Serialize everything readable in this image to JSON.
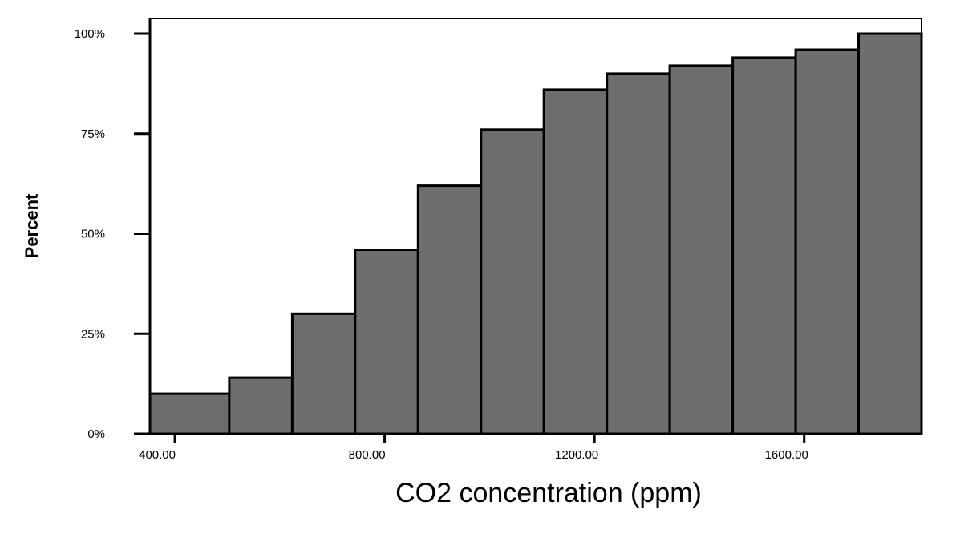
{
  "chart_data": {
    "type": "bar",
    "subtype": "cumulative histogram",
    "title": "",
    "xlabel": "CO2 concentration (ppm)",
    "ylabel": "Percent",
    "bins": [
      {
        "from": 352.5,
        "to": 503.75,
        "percent": 10
      },
      {
        "from": 503.75,
        "to": 623.75,
        "percent": 14
      },
      {
        "from": 623.75,
        "to": 743.75,
        "percent": 30
      },
      {
        "from": 743.75,
        "to": 863.75,
        "percent": 46
      },
      {
        "from": 863.75,
        "to": 983.75,
        "percent": 62
      },
      {
        "from": 983.75,
        "to": 1103.75,
        "percent": 76
      },
      {
        "from": 1103.75,
        "to": 1223.75,
        "percent": 86
      },
      {
        "from": 1223.75,
        "to": 1343.75,
        "percent": 90
      },
      {
        "from": 1343.75,
        "to": 1463.75,
        "percent": 92
      },
      {
        "from": 1463.75,
        "to": 1583.75,
        "percent": 94
      },
      {
        "from": 1583.75,
        "to": 1703.75,
        "percent": 96
      },
      {
        "from": 1703.75,
        "to": 1823.75,
        "percent": 100
      }
    ],
    "xlim": [
      352.5,
      1823.75
    ],
    "ylim": [
      0,
      100
    ],
    "x_ticks": [
      {
        "value": 400,
        "label": "400.00"
      },
      {
        "value": 800,
        "label": "800.00"
      },
      {
        "value": 1200,
        "label": "1200.00"
      },
      {
        "value": 1600,
        "label": "1600.00"
      }
    ],
    "y_ticks": [
      {
        "value": 0,
        "label": "0%"
      },
      {
        "value": 25,
        "label": "25%"
      },
      {
        "value": 50,
        "label": "50%"
      },
      {
        "value": 75,
        "label": "75%"
      },
      {
        "value": 100,
        "label": "100%"
      }
    ],
    "bar_color": "#6e6e6e",
    "edge_color": "#000000",
    "grid": false
  }
}
